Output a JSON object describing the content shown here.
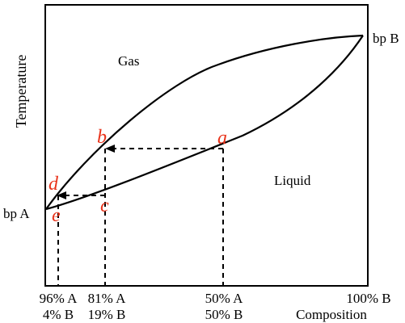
{
  "labels": {
    "axis_y": "Temperature",
    "axis_x": "Composition",
    "region_gas": "Gas",
    "region_liquid": "Liquid",
    "bp_a": "bp A",
    "bp_b": "bp B"
  },
  "points": {
    "a": "a",
    "b": "b",
    "c": "c",
    "d": "d",
    "e": "e"
  },
  "ticks": [
    {
      "line1": "96% A",
      "line2": "4% B"
    },
    {
      "line1": "81% A",
      "line2": "19% B"
    },
    {
      "line1": "50% A",
      "line2": "50% B"
    },
    {
      "line1": "100% B",
      "line2": ""
    }
  ],
  "colors": {
    "point_label": "#e8321a",
    "lines": "#000000"
  }
}
